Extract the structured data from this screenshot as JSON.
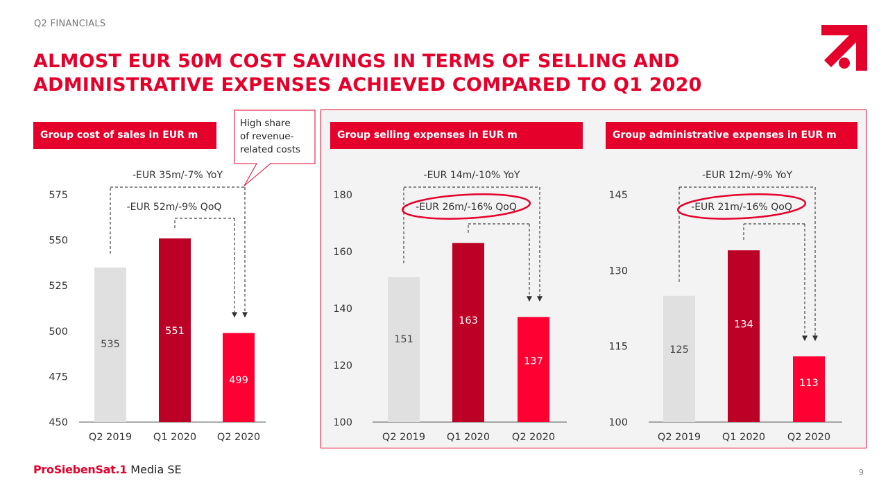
{
  "section": "Q2 FINANCIALS",
  "title": {
    "line1": "ALMOST EUR 50M COST SAVINGS IN TERMS OF SELLING AND",
    "line2": "ADMINISTRATIVE EXPENSES ACHIEVED COMPARED TO Q1 2020"
  },
  "callout": {
    "line1": "High share",
    "line2": "of revenue-",
    "line3": "related costs"
  },
  "footer": {
    "brand_main": "ProSiebenSat.1",
    "brand_sub": " Media SE",
    "page_number": "9"
  },
  "colors": {
    "accent": "#e5002b",
    "bar_q2_2019": "#e0e0e0",
    "bar_q1_2020": "#bd0026",
    "bar_q2_2020": "#ff0033",
    "highlight_bg": "#f3f3f3"
  },
  "chart_data": [
    {
      "type": "bar",
      "title": "Group cost of sales in EUR m",
      "categories": [
        "Q2 2019",
        "Q1 2020",
        "Q2 2020"
      ],
      "values": [
        535,
        551,
        499
      ],
      "ylim": [
        450,
        575
      ],
      "yticks": [
        450,
        475,
        500,
        525,
        550,
        575
      ],
      "annotations": {
        "yoy": "-EUR 35m/-7% YoY",
        "qoq": "-EUR 52m/-9% QoQ"
      },
      "highlight_qoq": false
    },
    {
      "type": "bar",
      "title": "Group selling expenses in EUR m",
      "categories": [
        "Q2 2019",
        "Q1 2020",
        "Q2 2020"
      ],
      "values": [
        151,
        163,
        137
      ],
      "ylim": [
        100,
        180
      ],
      "yticks": [
        100,
        120,
        140,
        160,
        180
      ],
      "annotations": {
        "yoy": "-EUR 14m/-10% YoY",
        "qoq": "-EUR 26m/-16% QoQ"
      },
      "highlight_qoq": true
    },
    {
      "type": "bar",
      "title": "Group administrative expenses in EUR m",
      "categories": [
        "Q2 2019",
        "Q1 2020",
        "Q2 2020"
      ],
      "values": [
        125,
        134,
        113
      ],
      "ylim": [
        100,
        145
      ],
      "yticks": [
        100,
        115,
        130,
        145
      ],
      "annotations": {
        "yoy": "-EUR 12m/-9% YoY",
        "qoq": "-EUR 21m/-16% QoQ"
      },
      "highlight_qoq": true
    }
  ]
}
